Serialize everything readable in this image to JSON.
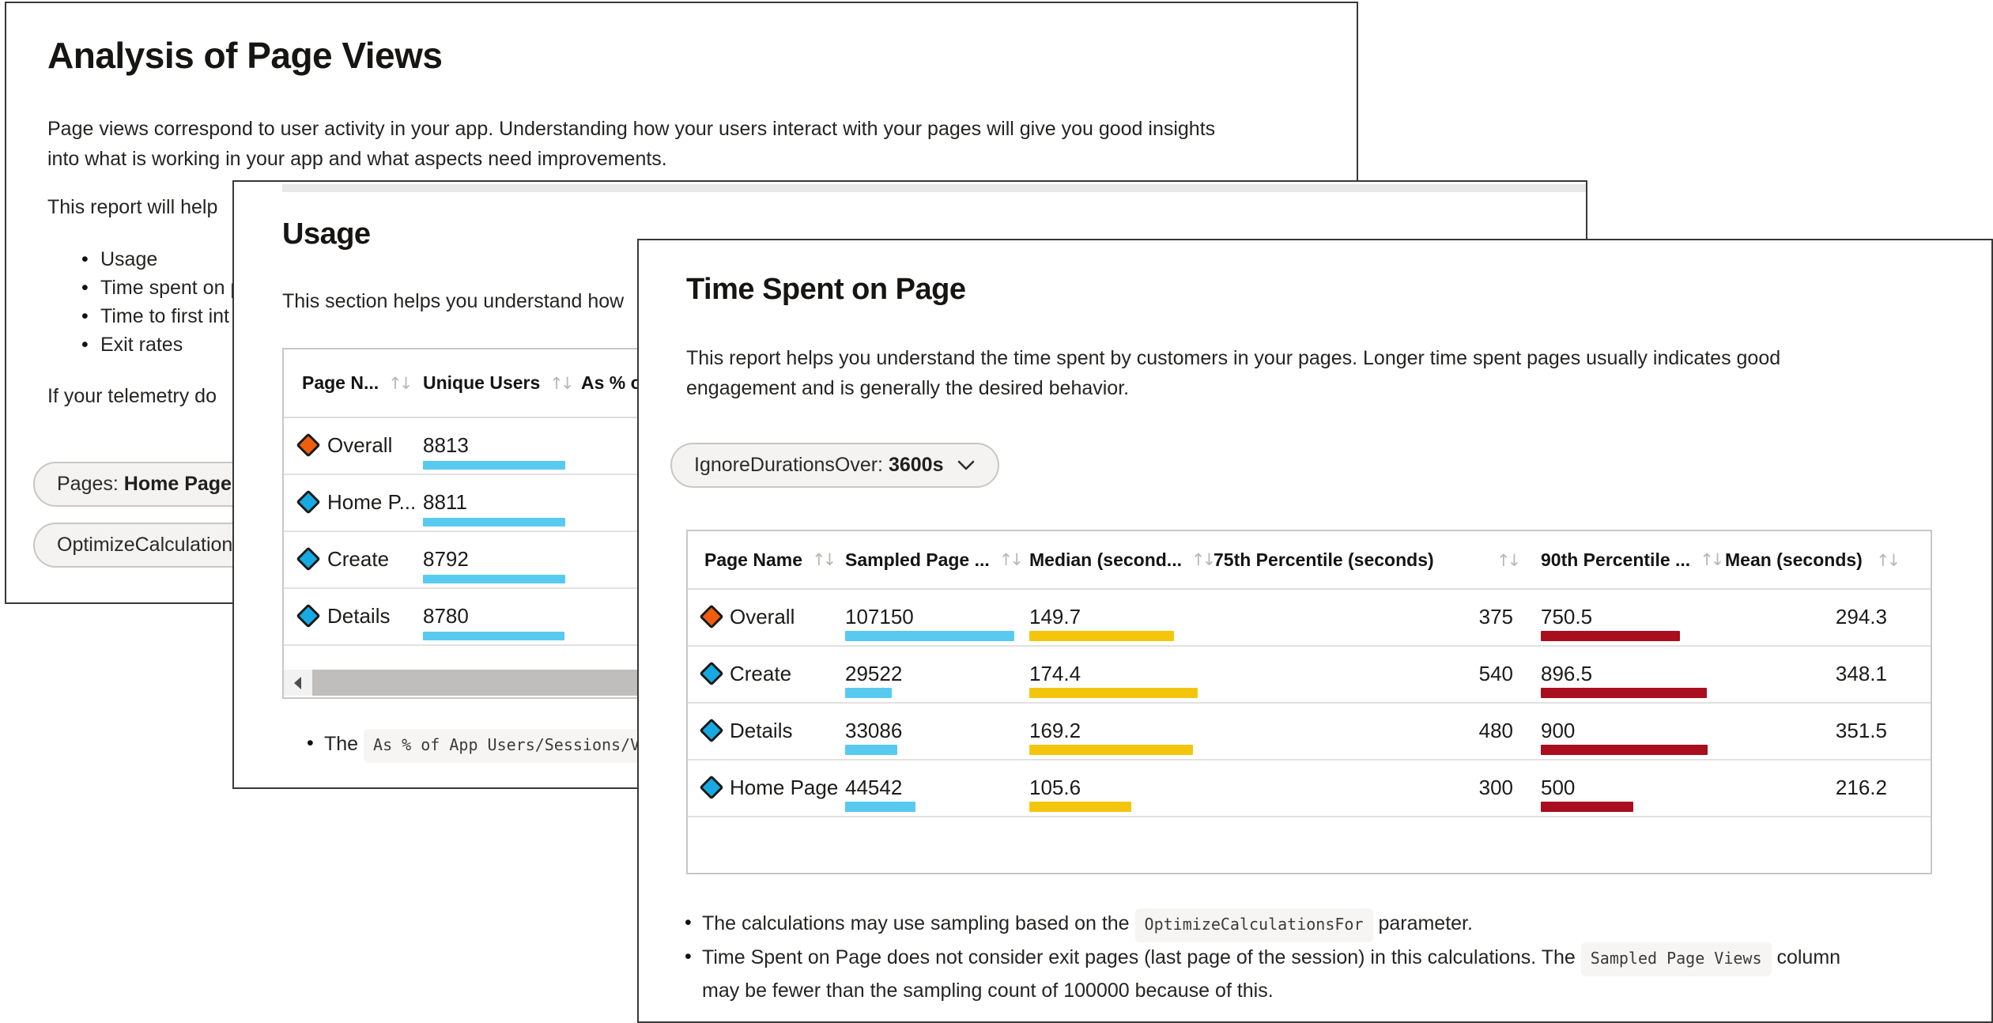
{
  "colors": {
    "cyan_bar": "#58CAF0",
    "yellow_bar": "#F3C60D",
    "red_bar": "#A80E1E",
    "orange_diamond": "#EE5E0E",
    "blue_diamond": "#17A9E1"
  },
  "cards": {
    "page_views": {
      "title": "Analysis of Page Views",
      "intro_line1": "Page views correspond to user activity in your app. Understanding how your users interact with your pages will give you good insights",
      "intro_line2": "into what is working in your app and what aspects need improvements.",
      "report_help": "This report will help",
      "bullets": [
        "Usage",
        "Time spent on p",
        "Time to first int",
        "Exit rates"
      ],
      "telemetry": "If your telemetry do",
      "pages_pill_label": "Pages: ",
      "pages_pill_value": "Home Page, D",
      "optimize_pill_label": "OptimizeCalculations"
    },
    "usage": {
      "title": "Usage",
      "description": "This section helps you understand how",
      "table": {
        "columns": [
          {
            "label": "Page N...",
            "sort": true
          },
          {
            "label": "Unique Users",
            "sort": true
          },
          {
            "label": "As % of",
            "sort": false
          }
        ],
        "rows": [
          {
            "icon": "orange",
            "name": "Overall",
            "unique_users": "8813"
          },
          {
            "icon": "blue",
            "name": "Home P...",
            "unique_users": "8811"
          },
          {
            "icon": "blue",
            "name": "Create",
            "unique_users": "8792"
          },
          {
            "icon": "blue",
            "name": "Details",
            "unique_users": "8780"
          }
        ]
      },
      "footnote": [
        [
          {
            "t": "The "
          },
          {
            "c": "As % of App Users/Sessions/V"
          }
        ]
      ]
    },
    "time_spent": {
      "title": "Time Spent on Page",
      "description_line1": "This report helps you understand the time spent by customers in your pages. Longer time spent pages usually indicates good",
      "description_line2": "engagement and is generally the desired behavior.",
      "filter_label": "IgnoreDurationsOver: ",
      "filter_value": "3600s",
      "table": {
        "columns": [
          {
            "label": "Page Name",
            "sort": true
          },
          {
            "label": "Sampled Page ...",
            "sort": true
          },
          {
            "label": "Median (second...",
            "sort": true
          },
          {
            "label": "75th Percentile (seconds)",
            "sort": true
          },
          {
            "label": "90th Percentile ...",
            "sort": true
          },
          {
            "label": "Mean (seconds)",
            "sort": true
          }
        ],
        "rows": [
          {
            "icon": "orange",
            "page_name": "Overall",
            "sampled": "107150",
            "median": "149.7",
            "p75": "375",
            "p90": "750.5",
            "mean": "294.3"
          },
          {
            "icon": "blue",
            "page_name": "Create",
            "sampled": "29522",
            "median": "174.4",
            "p75": "540",
            "p90": "896.5",
            "mean": "348.1"
          },
          {
            "icon": "blue",
            "page_name": "Details",
            "sampled": "33086",
            "median": "169.2",
            "p75": "480",
            "p90": "900",
            "mean": "351.5"
          },
          {
            "icon": "blue",
            "page_name": "Home Page",
            "sampled": "44542",
            "median": "105.6",
            "p75": "300",
            "p90": "500",
            "mean": "216.2"
          }
        ]
      },
      "footnotes": [
        [
          [
            {
              "t": "The calculations may use sampling based on the "
            },
            {
              "c": "OptimizeCalculationsFor"
            },
            {
              "t": " parameter."
            }
          ]
        ],
        [
          [
            {
              "t": "Time Spent on Page does not consider exit pages (last page of the session) in this calculations. The "
            },
            {
              "c": "Sampled Page Views"
            },
            {
              "t": " column"
            }
          ],
          [
            {
              "t": "may be fewer than the sampling count of 100000 because of this."
            }
          ]
        ]
      ]
    }
  }
}
